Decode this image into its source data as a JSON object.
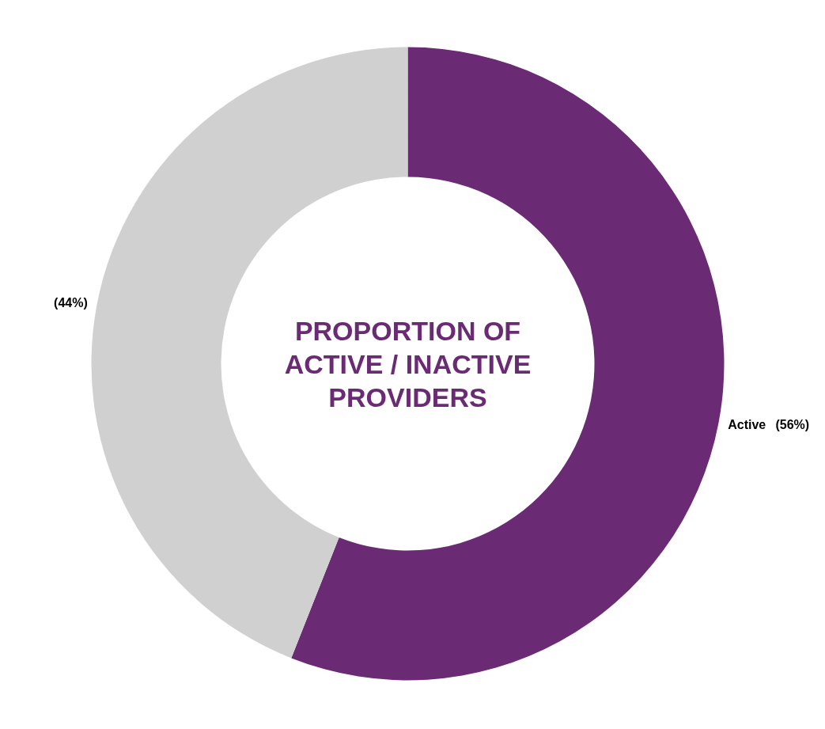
{
  "chart_data": {
    "type": "donut",
    "title": "PROPORTION OF ACTIVE / INACTIVE PROVIDERS",
    "categories": [
      "Active",
      null
    ],
    "values": [
      56,
      44
    ],
    "colors": [
      "#6b2a74",
      "#d0d0d0"
    ],
    "value_labels": [
      "(56%)",
      "(44%)"
    ],
    "legend": false
  }
}
